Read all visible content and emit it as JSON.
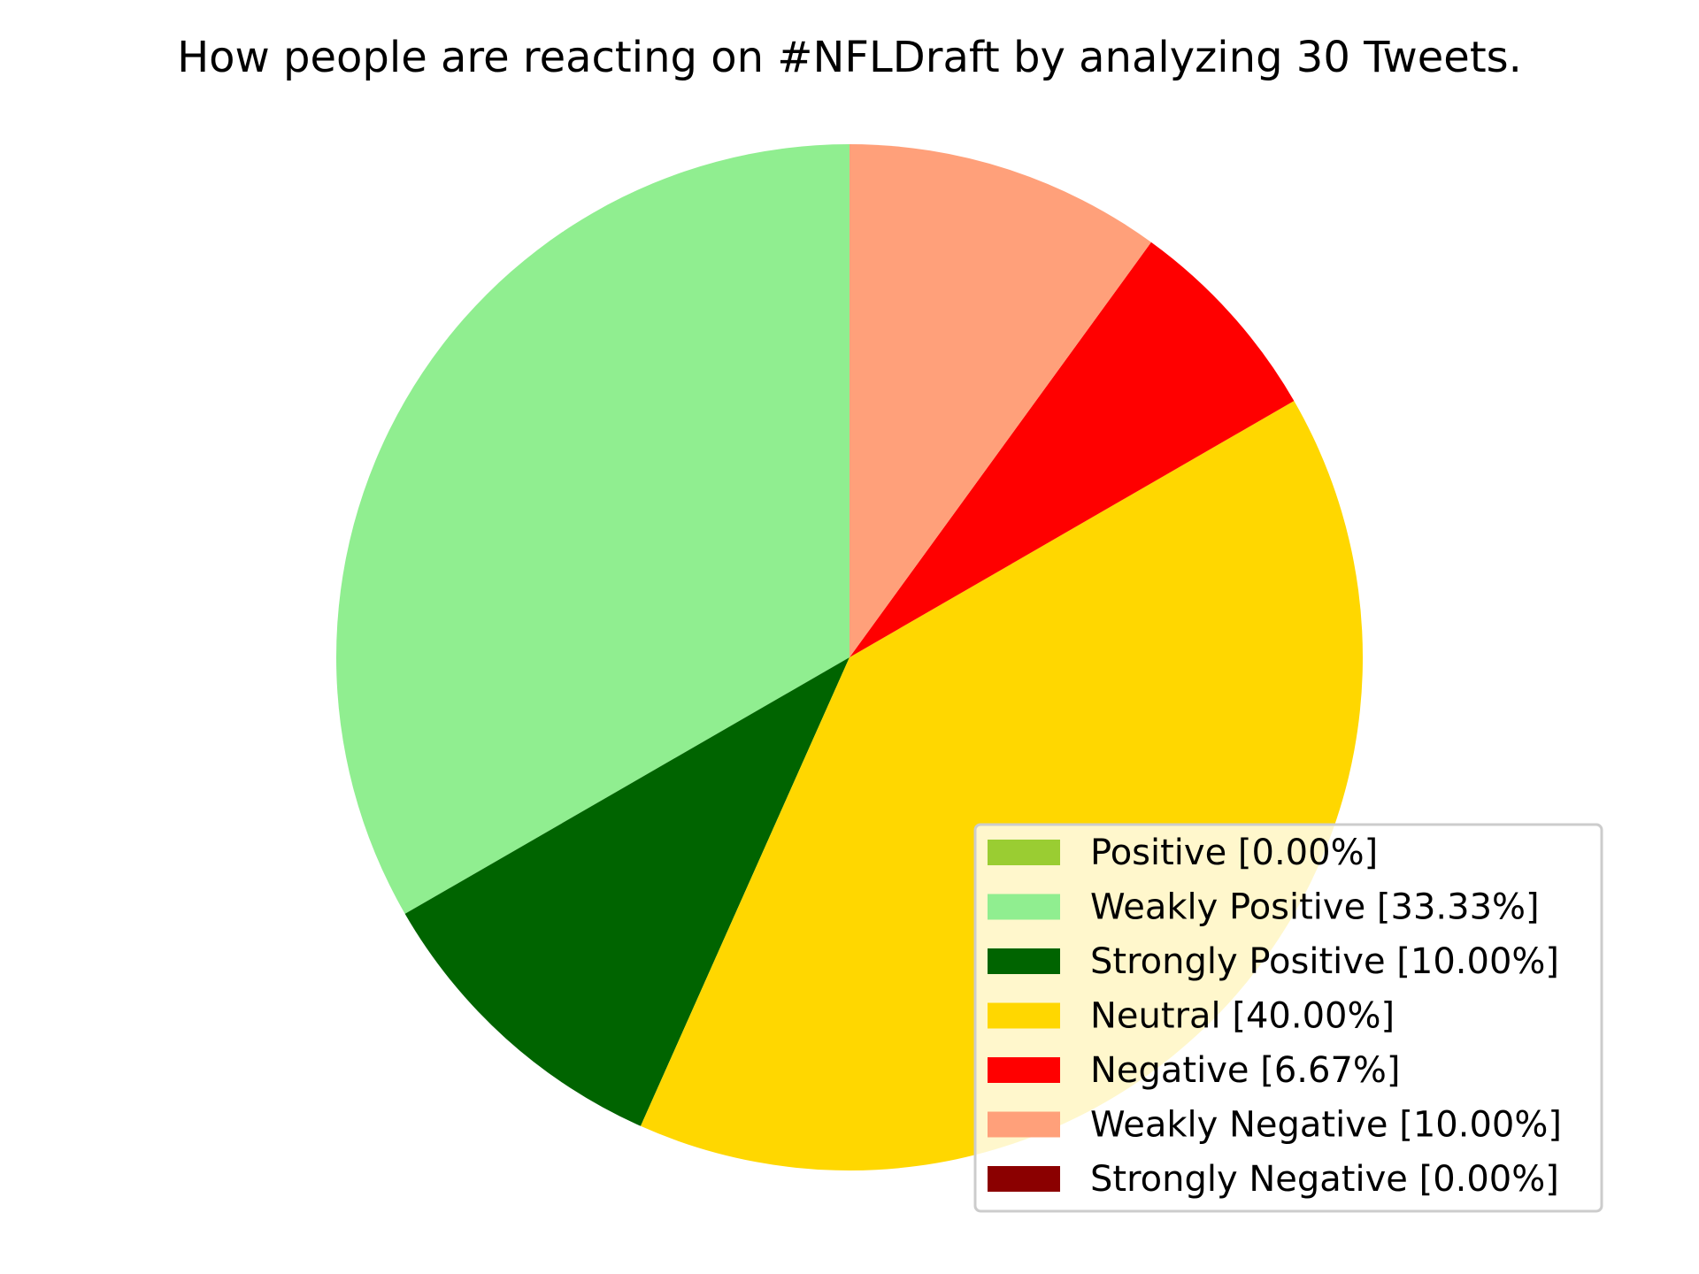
{
  "chart_data": {
    "type": "pie",
    "title": "How people are reacting on #NFLDraft by analyzing 30 Tweets.",
    "start_angle_deg": 90,
    "direction": "counterclockwise",
    "legend_position": "lower-right",
    "slices": [
      {
        "label": "Positive",
        "value": 0.0,
        "color": "#9acd32",
        "legend_text": "Positive [0.00%]"
      },
      {
        "label": "Weakly Positive",
        "value": 33.33,
        "color": "#90ee90",
        "legend_text": "Weakly Positive [33.33%]"
      },
      {
        "label": "Strongly Positive",
        "value": 10.0,
        "color": "#006400",
        "legend_text": "Strongly Positive [10.00%]"
      },
      {
        "label": "Neutral",
        "value": 40.0,
        "color": "#ffd700",
        "legend_text": "Neutral [40.00%]"
      },
      {
        "label": "Negative",
        "value": 6.67,
        "color": "#ff0000",
        "legend_text": "Negative [6.67%]"
      },
      {
        "label": "Weakly Negative",
        "value": 10.0,
        "color": "#ffa07a",
        "legend_text": "Weakly Negative [10.00%]"
      },
      {
        "label": "Strongly Negative",
        "value": 0.0,
        "color": "#8b0000",
        "legend_text": "Strongly Negative [0.00%]"
      }
    ]
  }
}
